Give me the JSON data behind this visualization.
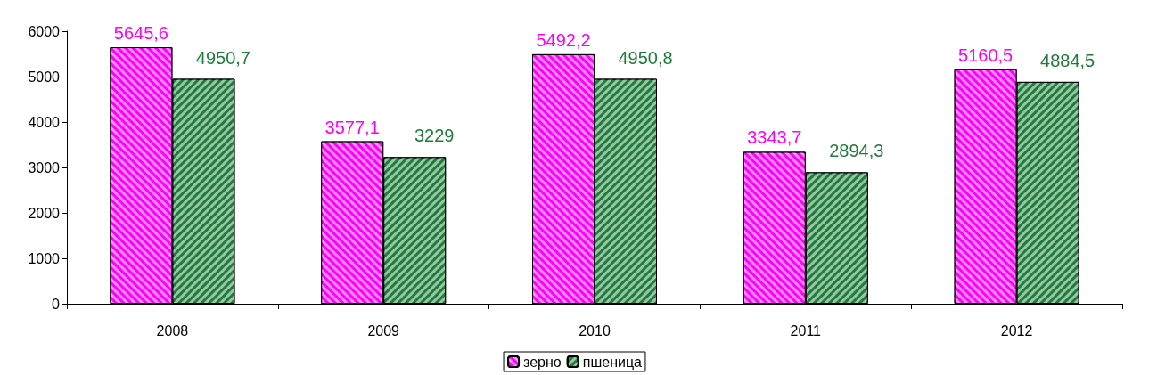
{
  "chart_data": {
    "type": "bar",
    "categories": [
      "2008",
      "2009",
      "2010",
      "2011",
      "2012"
    ],
    "series": [
      {
        "name": "зерно",
        "color": "#ff00ff",
        "values": [
          5645.6,
          3577.1,
          5492.2,
          3343.7,
          5160.5
        ],
        "value_labels": [
          "5645,6",
          "3577,1",
          "5492,2",
          "3343,7",
          "5160,5"
        ]
      },
      {
        "name": "пшеница",
        "color": "#1e7d3a",
        "values": [
          4950.7,
          3229,
          4950.8,
          2894.3,
          4884.5
        ],
        "value_labels": [
          "4950,7",
          "3229",
          "4950,8",
          "2894,3",
          "4884,5"
        ]
      }
    ],
    "ylim": [
      0,
      6000
    ],
    "yticks": [
      0,
      1000,
      2000,
      3000,
      4000,
      5000,
      6000
    ],
    "grid": false,
    "legend": "bottom"
  }
}
